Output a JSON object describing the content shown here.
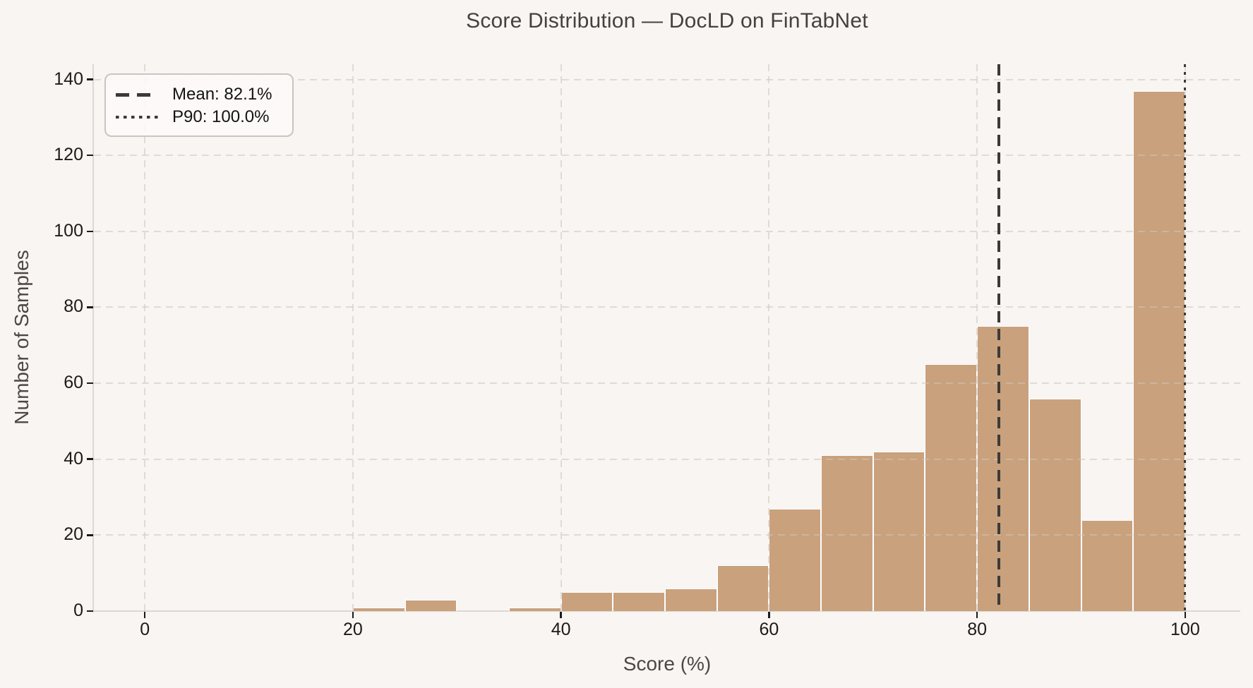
{
  "chart_data": {
    "type": "bar",
    "subtype": "histogram",
    "title": "Score Distribution — DocLD on FinTabNet",
    "xlabel": "Score (%)",
    "ylabel": "Number of Samples",
    "bin_edges": [
      20,
      25,
      30,
      35,
      40,
      45,
      50,
      55,
      60,
      65,
      70,
      75,
      80,
      85,
      90,
      95,
      100
    ],
    "counts": [
      1,
      3,
      0,
      1,
      5,
      5,
      6,
      12,
      27,
      41,
      42,
      65,
      75,
      56,
      24,
      137
    ],
    "xticks": [
      0,
      20,
      40,
      60,
      80,
      100
    ],
    "yticks": [
      0,
      20,
      40,
      60,
      80,
      100,
      120,
      140
    ],
    "xlim": [
      -4.9,
      105.3
    ],
    "ylim": [
      0,
      144
    ],
    "grid": true,
    "legend_position": "upper left",
    "reference_lines": [
      {
        "id": "mean",
        "label": "Mean: 82.1%",
        "value": 82.1,
        "style": "dashed",
        "color": "#3C3A38"
      },
      {
        "id": "p90",
        "label": "P90: 100.0%",
        "value": 100.0,
        "style": "dotted",
        "color": "#3C3A38"
      }
    ],
    "colors": {
      "bar_fill": "#C9A17D",
      "bar_edge": "#FFFFFF",
      "background": "#F8F5F2",
      "grid": "#CDC6BD",
      "title_text": "#45413E",
      "tick_text": "#1D1B1A",
      "axis_label_text": "#4C4744"
    }
  }
}
